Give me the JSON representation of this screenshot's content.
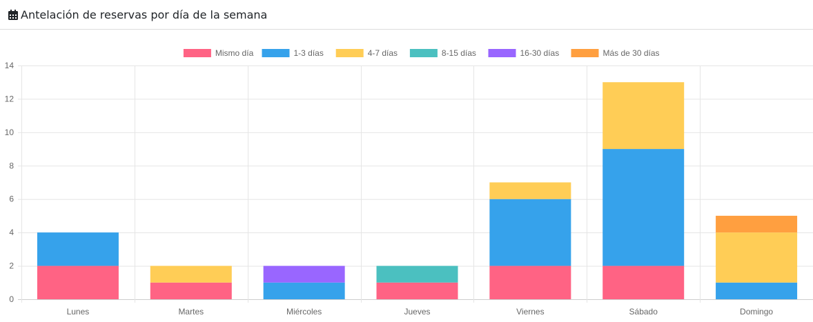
{
  "header": {
    "title": "Antelación de reservas por día de la semana",
    "icon": "calendar-icon"
  },
  "chart_data": {
    "type": "bar",
    "stacked": true,
    "categories": [
      "Lunes",
      "Martes",
      "Miércoles",
      "Jueves",
      "Viernes",
      "Sábado",
      "Domingo"
    ],
    "series": [
      {
        "name": "Mismo día",
        "color": "#ff6384",
        "values": [
          2,
          1,
          0,
          1,
          2,
          2,
          0
        ]
      },
      {
        "name": "1-3 días",
        "color": "#36a2eb",
        "values": [
          2,
          0,
          1,
          0,
          4,
          7,
          1
        ]
      },
      {
        "name": "4-7 días",
        "color": "#ffcd56",
        "values": [
          0,
          1,
          0,
          0,
          1,
          4,
          3
        ]
      },
      {
        "name": "8-15 días",
        "color": "#4bc0c0",
        "values": [
          0,
          0,
          0,
          1,
          0,
          0,
          0
        ]
      },
      {
        "name": "16-30 días",
        "color": "#9966ff",
        "values": [
          0,
          0,
          1,
          0,
          0,
          0,
          0
        ]
      },
      {
        "name": "Más de 30 días",
        "color": "#ff9f40",
        "values": [
          0,
          0,
          0,
          0,
          0,
          0,
          1
        ]
      }
    ],
    "yticks": [
      0,
      2,
      4,
      6,
      8,
      10,
      12,
      14
    ],
    "ylim": [
      0,
      14
    ],
    "legend": "top",
    "grid": true
  }
}
